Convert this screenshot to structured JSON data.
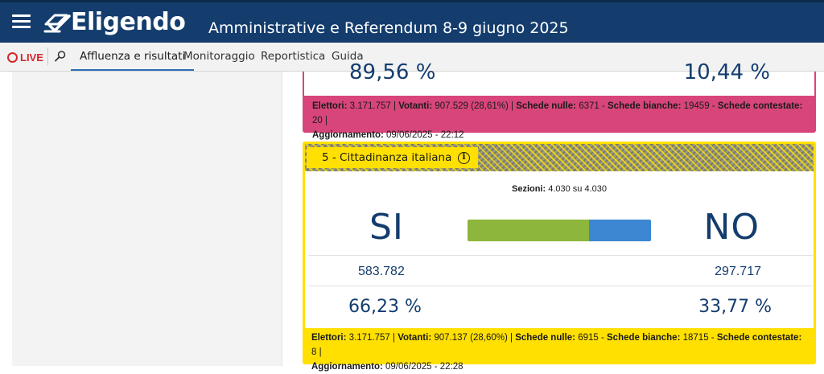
{
  "app": {
    "name": "Eligendo",
    "election_title": "Amministrative e Referendum 8-9 giugno 2025"
  },
  "nav": {
    "live_label": "LIVE",
    "tabs": [
      {
        "label": "Affluenza e risultati",
        "active": true
      },
      {
        "label": "Monitoraggio",
        "active": false
      },
      {
        "label": "Reportistica",
        "active": false
      },
      {
        "label": "Guida",
        "active": false
      }
    ]
  },
  "colors": {
    "header": "#143d6e",
    "live": "#d9262a",
    "card4_accent": "#d8457a",
    "card5_accent": "#ffe000",
    "si_bar": "#8cb63c",
    "no_bar": "#3d86d1"
  },
  "referendum_4": {
    "si_pct": "89,56 %",
    "no_pct": "10,44 %",
    "footer": {
      "elettori_label": "Elettori:",
      "elettori": "3.171.757",
      "votanti_label": "Votanti:",
      "votanti": "907.529 (28,61%)",
      "nulle_label": "Schede nulle:",
      "nulle": "6371",
      "bianche_label": "Schede bianche:",
      "bianche": "19459",
      "contestate_label": "Schede contestate:",
      "contestate": "20",
      "aggiornamento_label": "Aggiornamento:",
      "aggiornamento": "09/06/2025 - 22:12"
    }
  },
  "referendum_5": {
    "title": "5 - Cittadinanza italiana",
    "sezioni_label": "Sezioni:",
    "sezioni_value": "4.030 su 4.030",
    "si_label": "SI",
    "no_label": "NO",
    "si_fraction": 0.6623,
    "si_votes": "583.782",
    "no_votes": "297.717",
    "si_pct": "66,23 %",
    "no_pct": "33,77 %",
    "footer": {
      "elettori_label": "Elettori:",
      "elettori": "3.171.757",
      "votanti_label": "Votanti:",
      "votanti": "907.137 (28,60%)",
      "nulle_label": "Schede nulle:",
      "nulle": "6915",
      "bianche_label": "Schede bianche:",
      "bianche": "18715",
      "contestate_label": "Schede contestate:",
      "contestate": "8",
      "aggiornamento_label": "Aggiornamento:",
      "aggiornamento": "09/06/2025 - 22:28"
    }
  },
  "icons": {
    "menu": "hamburger-icon",
    "logo": "eligendo-logo-icon",
    "search": "search-icon",
    "info": "info-icon",
    "live": "live-circle-icon"
  }
}
